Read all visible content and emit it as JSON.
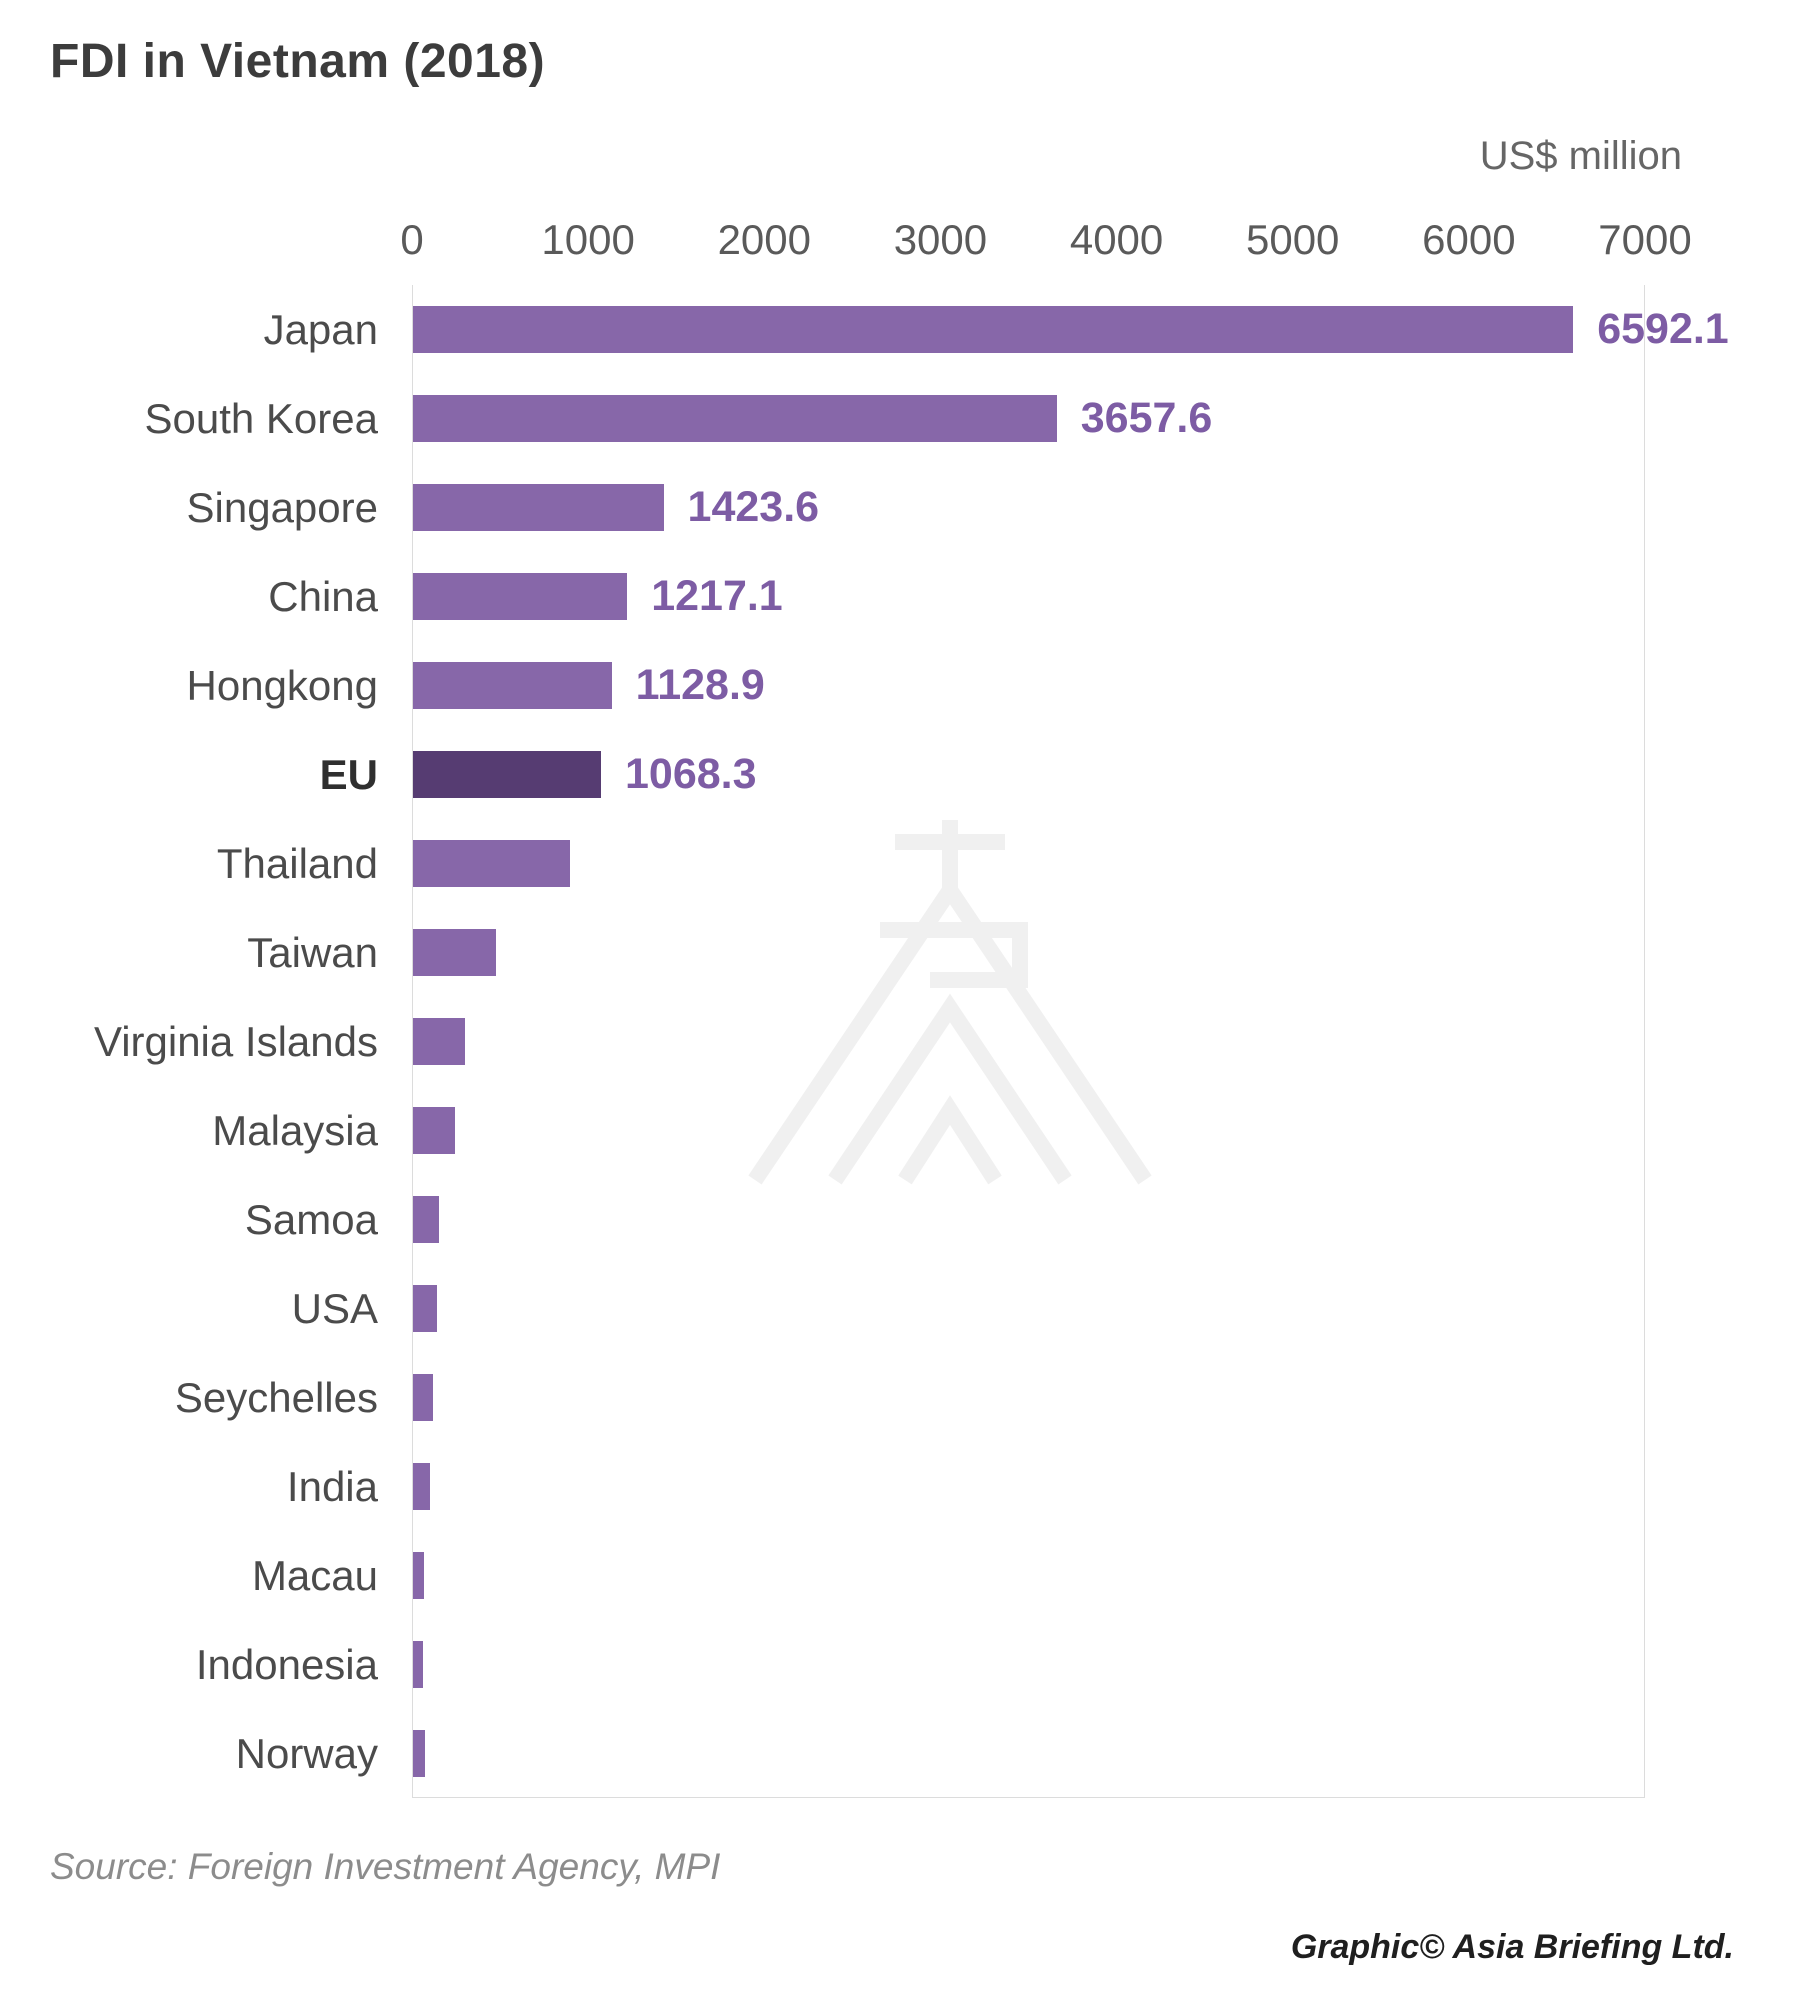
{
  "title": "FDI in Vietnam (2018)",
  "colors": {
    "bar": "#8767a9",
    "bar_highlight": "#563c72",
    "value_label": "#7d5ca4"
  },
  "chart_data": {
    "type": "bar",
    "orientation": "horizontal",
    "title": "FDI in Vietnam (2018)",
    "xlabel": "US$ million",
    "xlim": [
      0,
      7000
    ],
    "ticks": [
      0,
      1000,
      2000,
      3000,
      4000,
      5000,
      6000,
      7000
    ],
    "grid": "minimal",
    "bars": [
      {
        "label": "Japan",
        "value": 6592.1,
        "display": "6592.1",
        "highlight": false
      },
      {
        "label": "South Korea",
        "value": 3657.6,
        "display": "3657.6",
        "highlight": false
      },
      {
        "label": "Singapore",
        "value": 1423.6,
        "display": "1423.6",
        "highlight": false
      },
      {
        "label": "China",
        "value": 1217.1,
        "display": "1217.1",
        "highlight": false
      },
      {
        "label": "Hongkong",
        "value": 1128.9,
        "display": "1128.9",
        "highlight": false
      },
      {
        "label": "EU",
        "value": 1068.3,
        "display": "1068.3",
        "highlight": true
      },
      {
        "label": "Thailand",
        "value": 890,
        "display": "",
        "highlight": false
      },
      {
        "label": "Taiwan",
        "value": 470,
        "display": "",
        "highlight": false
      },
      {
        "label": "Virginia Islands",
        "value": 295,
        "display": "",
        "highlight": false
      },
      {
        "label": "Malaysia",
        "value": 240,
        "display": "",
        "highlight": false
      },
      {
        "label": "Samoa",
        "value": 150,
        "display": "",
        "highlight": false
      },
      {
        "label": "USA",
        "value": 135,
        "display": "",
        "highlight": false
      },
      {
        "label": "Seychelles",
        "value": 115,
        "display": "",
        "highlight": false
      },
      {
        "label": "India",
        "value": 95,
        "display": "",
        "highlight": false
      },
      {
        "label": "Macau",
        "value": 62,
        "display": "",
        "highlight": false
      },
      {
        "label": "Indonesia",
        "value": 55,
        "display": "",
        "highlight": false
      },
      {
        "label": "Norway",
        "value": 68,
        "display": "",
        "highlight": false
      }
    ]
  },
  "footer": {
    "source": "Source: Foreign Investment Agency, MPI",
    "credit": "Graphic© Asia Briefing Ltd."
  }
}
